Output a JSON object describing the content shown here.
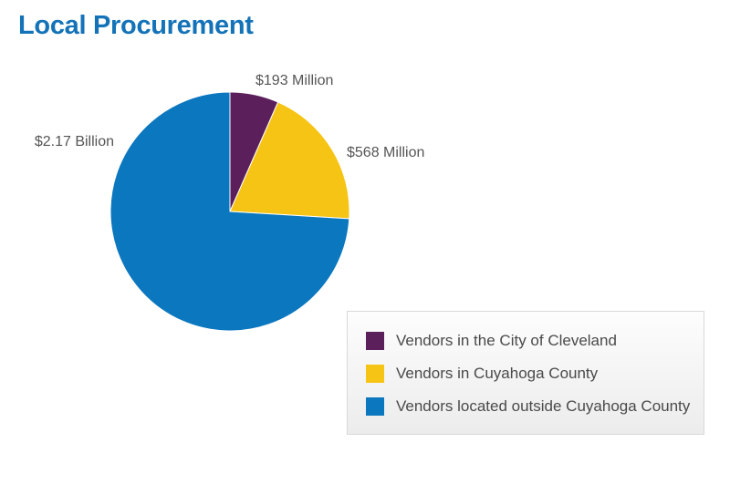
{
  "title": "Local Procurement",
  "chart_data": {
    "type": "pie",
    "categories": [
      "Vendors in the City of Cleveland",
      "Vendors in Cuyahoga County",
      "Vendors located outside Cuyahoga County"
    ],
    "values": [
      193,
      568,
      2170
    ],
    "value_units": "Millions of dollars",
    "labels": [
      "$193 Million",
      "$568 Million",
      "$2.17 Billion"
    ],
    "colors": [
      "#5b1f5c",
      "#f6c414",
      "#0b77bf"
    ],
    "legend_position": "bottom-right"
  }
}
